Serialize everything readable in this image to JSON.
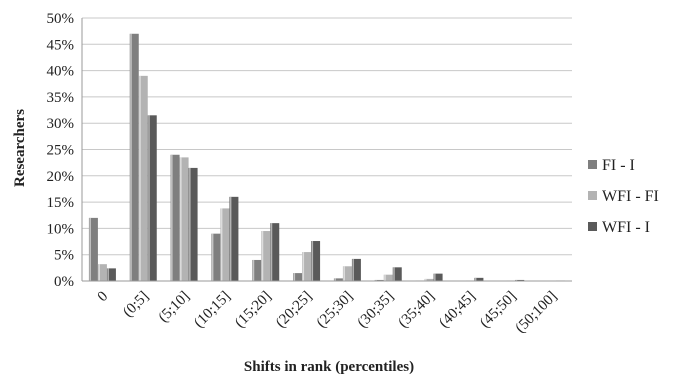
{
  "chart_data": {
    "type": "bar",
    "title": "",
    "xlabel": "Shifts in rank (percentiles)",
    "ylabel": "Researchers",
    "ylim": [
      0,
      50
    ],
    "yticks": [
      "0%",
      "5%",
      "10%",
      "15%",
      "20%",
      "25%",
      "30%",
      "35%",
      "40%",
      "45%",
      "50%"
    ],
    "grid": true,
    "legend_position": "right",
    "categories": [
      "0",
      "(0;5]",
      "(5;10]",
      "(10;15]",
      "(15;20]",
      "(20;25]",
      "(25;30]",
      "(30;35]",
      "(35;40]",
      "(40;45]",
      "(45;50]",
      "(50;100]"
    ],
    "series": [
      {
        "name": "FI - I",
        "color": "#7f7f7f",
        "values": [
          12,
          47,
          24,
          9,
          4,
          1.5,
          0.5,
          0.2,
          0.1,
          0,
          0,
          0
        ]
      },
      {
        "name": "WFI - FI",
        "color": "#b3b3b3",
        "values": [
          3.2,
          39,
          23.5,
          13.8,
          9.5,
          5.5,
          2.8,
          1.2,
          0.4,
          0.1,
          0.1,
          0
        ]
      },
      {
        "name": "WFI - I",
        "color": "#5a5a5a",
        "values": [
          2.4,
          31.5,
          21.5,
          16,
          11,
          7.6,
          4.2,
          2.6,
          1.4,
          0.6,
          0.2,
          0.1
        ]
      }
    ]
  }
}
